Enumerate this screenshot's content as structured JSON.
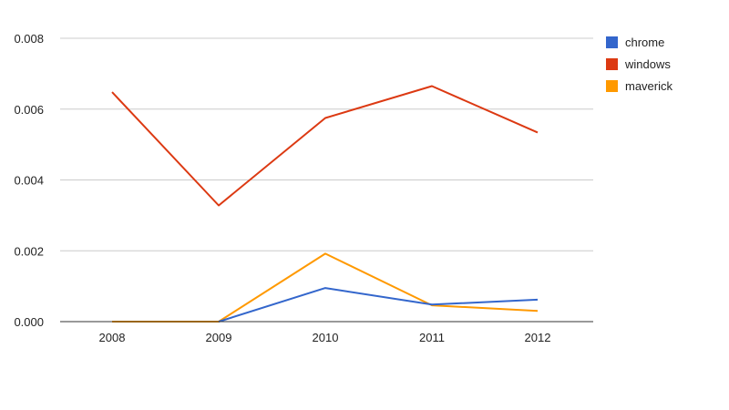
{
  "chart_data": {
    "type": "line",
    "categories": [
      "2008",
      "2009",
      "2010",
      "2011",
      "2012"
    ],
    "series": [
      {
        "name": "chrome",
        "color": "#3366cc",
        "values": [
          null,
          0.0,
          0.00095,
          0.00048,
          0.00062
        ]
      },
      {
        "name": "windows",
        "color": "#dc3912",
        "values": [
          0.00648,
          0.00328,
          0.00575,
          0.00665,
          0.00534
        ]
      },
      {
        "name": "maverick",
        "color": "#ff9900",
        "values": [
          0.0,
          0.0,
          0.00192,
          0.00046,
          0.0003
        ]
      }
    ],
    "ylim": [
      0,
      0.008
    ],
    "yticks": [
      0.0,
      0.002,
      0.004,
      0.006,
      0.008
    ],
    "ytick_labels": [
      "0.000",
      "0.002",
      "0.004",
      "0.006",
      "0.008"
    ],
    "grid": true,
    "legend_position": "right"
  }
}
